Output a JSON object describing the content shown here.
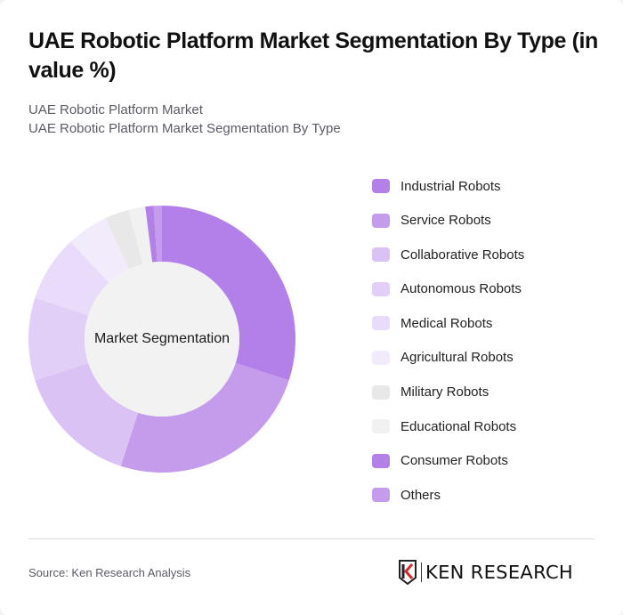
{
  "header": {
    "title": "UAE Robotic Platform Market Segmentation By Type (in value %)",
    "subtitle_line1": "UAE Robotic Platform Market",
    "subtitle_line2": "UAE Robotic Platform Market Segmentation By Type"
  },
  "chart": {
    "center_label": "Market Segmentation"
  },
  "legend": [
    {
      "label": "Industrial Robots",
      "color": "#b380ea"
    },
    {
      "label": "Service Robots",
      "color": "#c59bec"
    },
    {
      "label": "Collaborative Robots",
      "color": "#dbc2f5"
    },
    {
      "label": "Autonomous Robots",
      "color": "#e2cff7"
    },
    {
      "label": "Medical Robots",
      "color": "#e9dcfa"
    },
    {
      "label": "Agricultural Robots",
      "color": "#f2ebfc"
    },
    {
      "label": "Military Robots",
      "color": "#e8e8e8"
    },
    {
      "label": "Educational Robots",
      "color": "#f1f1f1"
    },
    {
      "label": "Consumer Robots",
      "color": "#b380ea"
    },
    {
      "label": "Others",
      "color": "#c59bec"
    }
  ],
  "footer": {
    "source": "Source: Ken Research Analysis",
    "logo_text": "KEN RESEARCH"
  },
  "chart_data": {
    "type": "pie",
    "variant": "donut",
    "title": "UAE Robotic Platform Market Segmentation By Type (in value %)",
    "subtitle": [
      "UAE Robotic Platform Market",
      "UAE Robotic Platform Market Segmentation By Type"
    ],
    "center_label": "Market Segmentation",
    "categories": [
      "Industrial Robots",
      "Service Robots",
      "Collaborative Robots",
      "Autonomous Robots",
      "Medical Robots",
      "Agricultural Robots",
      "Military Robots",
      "Educational Robots",
      "Consumer Robots",
      "Others"
    ],
    "values": [
      30,
      25,
      15,
      10,
      8,
      5,
      3,
      2,
      1,
      1
    ],
    "colors": [
      "#b380ea",
      "#c59bec",
      "#dbc2f5",
      "#e2cff7",
      "#e9dcfa",
      "#f2ebfc",
      "#e8e8e8",
      "#f1f1f1",
      "#b380ea",
      "#c59bec"
    ],
    "unit": "%",
    "start_angle_deg": 0,
    "direction": "clockwise",
    "legend_position": "right",
    "source": "Source: Ken Research Analysis"
  }
}
